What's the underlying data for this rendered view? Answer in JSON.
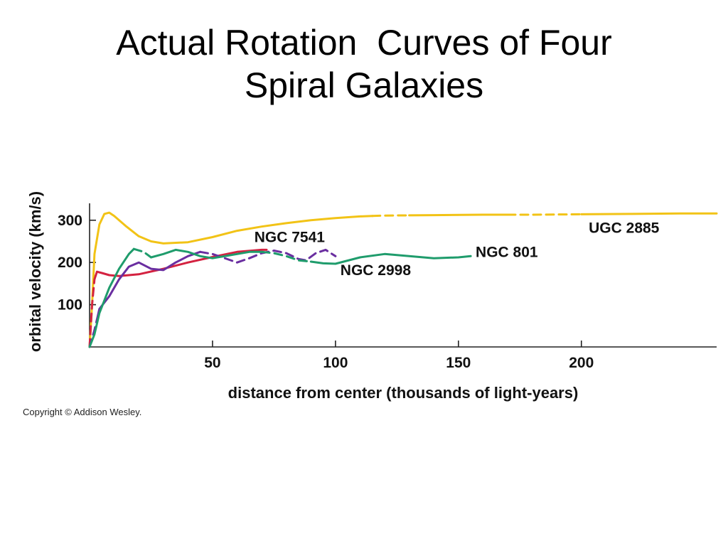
{
  "title_lines": [
    "Actual Rotation  Curves of Four",
    "Spiral Galaxies"
  ],
  "copyright": "Copyright © Addison Wesley.",
  "chart_data": {
    "type": "line",
    "xlabel": "distance from center (thousands of light-years)",
    "ylabel": "orbital velocity (km/s)",
    "xlim": [
      0,
      255
    ],
    "ylim": [
      0,
      340
    ],
    "xticks": [
      50,
      100,
      150,
      200
    ],
    "yticks": [
      100,
      200,
      300
    ],
    "grid": false,
    "series": [
      {
        "name": "UGC 2885",
        "color": "#f2c316",
        "points": [
          [
            0,
            0
          ],
          [
            1,
            100
          ],
          [
            2,
            220
          ],
          [
            4,
            290
          ],
          [
            6,
            315
          ],
          [
            8,
            318
          ],
          [
            10,
            310
          ],
          [
            15,
            285
          ],
          [
            20,
            262
          ],
          [
            25,
            250
          ],
          [
            30,
            245
          ],
          [
            40,
            248
          ],
          [
            50,
            260
          ],
          [
            60,
            275
          ],
          [
            70,
            285
          ],
          [
            80,
            293
          ],
          [
            90,
            300
          ],
          [
            100,
            305
          ],
          [
            110,
            309
          ],
          [
            120,
            311
          ],
          [
            140,
            312
          ],
          [
            160,
            313
          ],
          [
            180,
            313
          ],
          [
            200,
            314
          ],
          [
            220,
            315
          ],
          [
            240,
            316
          ],
          [
            255,
            316
          ]
        ],
        "dashed_x": [
          [
            115,
            130
          ],
          [
            170,
            200
          ]
        ]
      },
      {
        "name": "NGC 7541",
        "color": "#d42240",
        "points": [
          [
            0,
            0
          ],
          [
            1,
            100
          ],
          [
            2,
            160
          ],
          [
            3,
            178
          ],
          [
            5,
            175
          ],
          [
            8,
            170
          ],
          [
            12,
            168
          ],
          [
            20,
            172
          ],
          [
            30,
            185
          ],
          [
            40,
            200
          ],
          [
            50,
            213
          ],
          [
            60,
            225
          ],
          [
            70,
            230
          ],
          [
            72,
            230
          ]
        ],
        "dashed_x": [
          [
            0,
            2.5
          ]
        ]
      },
      {
        "name": "NGC 2998",
        "color": "#6a2ea0",
        "points": [
          [
            0,
            0
          ],
          [
            2,
            40
          ],
          [
            4,
            90
          ],
          [
            8,
            120
          ],
          [
            12,
            160
          ],
          [
            16,
            190
          ],
          [
            20,
            200
          ],
          [
            25,
            185
          ],
          [
            30,
            182
          ],
          [
            35,
            200
          ],
          [
            40,
            215
          ],
          [
            45,
            225
          ],
          [
            50,
            220
          ],
          [
            55,
            210
          ],
          [
            60,
            200
          ],
          [
            65,
            210
          ],
          [
            70,
            222
          ],
          [
            75,
            228
          ],
          [
            80,
            222
          ],
          [
            85,
            208
          ],
          [
            88,
            205
          ],
          [
            92,
            222
          ],
          [
            96,
            230
          ],
          [
            100,
            215
          ]
        ],
        "dashed_x": [
          [
            0,
            3
          ],
          [
            45,
            100
          ]
        ]
      },
      {
        "name": "NGC 801",
        "color": "#1f9c6c",
        "points": [
          [
            0,
            0
          ],
          [
            2,
            30
          ],
          [
            4,
            80
          ],
          [
            8,
            140
          ],
          [
            12,
            185
          ],
          [
            16,
            220
          ],
          [
            18,
            232
          ],
          [
            22,
            225
          ],
          [
            25,
            212
          ],
          [
            30,
            220
          ],
          [
            35,
            230
          ],
          [
            40,
            225
          ],
          [
            45,
            215
          ],
          [
            50,
            210
          ],
          [
            55,
            215
          ],
          [
            60,
            220
          ],
          [
            65,
            225
          ],
          [
            70,
            225
          ],
          [
            75,
            222
          ],
          [
            80,
            215
          ],
          [
            85,
            205
          ],
          [
            90,
            202
          ],
          [
            95,
            198
          ],
          [
            100,
            197
          ],
          [
            110,
            212
          ],
          [
            120,
            220
          ],
          [
            130,
            215
          ],
          [
            140,
            210
          ],
          [
            150,
            212
          ],
          [
            155,
            215
          ]
        ],
        "dashed_x": [
          [
            18,
            25
          ],
          [
            70,
            90
          ]
        ]
      }
    ],
    "labels": [
      {
        "text": "UGC 2885",
        "x": 203,
        "y": 270
      },
      {
        "text": "NGC 7541",
        "x": 67,
        "y": 248
      },
      {
        "text": "NGC 801",
        "x": 157,
        "y": 213
      },
      {
        "text": "NGC 2998",
        "x": 102,
        "y": 170
      }
    ]
  }
}
